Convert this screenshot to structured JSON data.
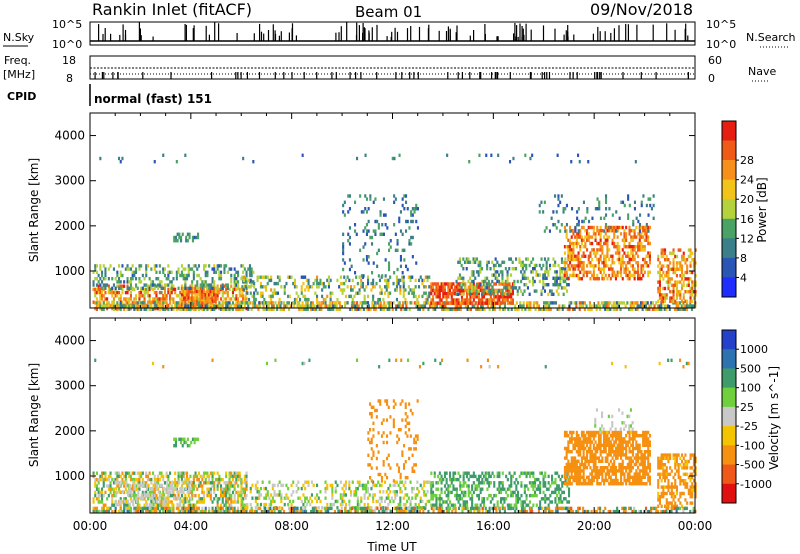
{
  "header": {
    "station": "Rankin Inlet (fitACF)",
    "beam": "Beam 01",
    "date": "09/Nov/2018"
  },
  "strips": {
    "nsky_label": "N.Sky",
    "nsearch_label": "N.Search",
    "nsky_ticks": [
      "10^5",
      "10^0"
    ],
    "nsearch_ticks": [
      "10^5",
      "10^0"
    ],
    "freq_label_top": "Freq.",
    "freq_label_unit": "[MHz]",
    "freq_ticks": [
      "18",
      "8"
    ],
    "nave_label": "Nave",
    "nave_ticks": [
      "60",
      "0"
    ],
    "cpid_label": "CPID",
    "cpid_text": "normal (fast) 151"
  },
  "chart_data": [
    {
      "type": "heatmap",
      "title": "",
      "panel": "power",
      "xlabel": "",
      "ylabel": "Slant Range [km]",
      "xlim": [
        0,
        24
      ],
      "ylim": [
        180,
        4500
      ],
      "x_ticks": [
        "00:00",
        "04:00",
        "08:00",
        "12:00",
        "16:00",
        "20:00",
        "00:00"
      ],
      "y_ticks": [
        1000,
        2000,
        3000,
        4000
      ],
      "colorbar_label": "Power [dB]",
      "colorbar_ticks": [
        "4",
        "8",
        "12",
        "16",
        "20",
        "24",
        "28"
      ],
      "colorbar_range": [
        0,
        32
      ],
      "colorbar_colors": [
        "#1f2dff",
        "#2b55b5",
        "#3b7f8a",
        "#4aa264",
        "#b3d23c",
        "#f2c419",
        "#f6901a",
        "#ef5a17",
        "#e61e12"
      ],
      "scatter_regions": [
        {
          "t": [
            0.1,
            6.2
          ],
          "r": [
            200,
            700
          ],
          "p": [
            14,
            30
          ],
          "d": 0.55
        },
        {
          "t": [
            3.6,
            5.0
          ],
          "r": [
            200,
            650
          ],
          "p": [
            20,
            30
          ],
          "d": 0.85
        },
        {
          "t": [
            0.1,
            24
          ],
          "r": [
            180,
            330
          ],
          "p": [
            6,
            26
          ],
          "d": 0.6
        },
        {
          "t": [
            0.1,
            6.5
          ],
          "r": [
            600,
            1150
          ],
          "p": [
            6,
            18
          ],
          "d": 0.35
        },
        {
          "t": [
            3.3,
            4.3
          ],
          "r": [
            1650,
            1850
          ],
          "p": [
            6,
            14
          ],
          "d": 0.5
        },
        {
          "t": [
            6.0,
            13.5
          ],
          "r": [
            280,
            900
          ],
          "p": [
            6,
            22
          ],
          "d": 0.3
        },
        {
          "t": [
            10.0,
            13.0
          ],
          "r": [
            900,
            2700
          ],
          "p": [
            4,
            14
          ],
          "d": 0.12
        },
        {
          "t": [
            13.5,
            16.8
          ],
          "r": [
            300,
            750
          ],
          "p": [
            22,
            32
          ],
          "d": 0.75
        },
        {
          "t": [
            14.5,
            19.0
          ],
          "r": [
            500,
            1300
          ],
          "p": [
            6,
            18
          ],
          "d": 0.35
        },
        {
          "t": [
            18.8,
            22.2
          ],
          "r": [
            800,
            2000
          ],
          "p": [
            18,
            30
          ],
          "d": 0.55
        },
        {
          "t": [
            17.8,
            22.5
          ],
          "r": [
            1900,
            2700
          ],
          "p": [
            4,
            14
          ],
          "d": 0.12
        },
        {
          "t": [
            22.5,
            24
          ],
          "r": [
            300,
            1500
          ],
          "p": [
            16,
            30
          ],
          "d": 0.5
        },
        {
          "t": [
            0.1,
            24
          ],
          "r": [
            3450,
            3600
          ],
          "p": [
            4,
            12
          ],
          "d": 0.03
        }
      ]
    },
    {
      "type": "heatmap",
      "title": "",
      "panel": "velocity",
      "xlabel": "Time UT",
      "ylabel": "Slant Range [km]",
      "xlim": [
        0,
        24
      ],
      "ylim": [
        180,
        4500
      ],
      "x_ticks": [
        "00:00",
        "04:00",
        "08:00",
        "12:00",
        "16:00",
        "20:00",
        "00:00"
      ],
      "y_ticks": [
        1000,
        2000,
        3000,
        4000
      ],
      "colorbar_label": "Velocity [m s^-1]",
      "colorbar_ticks": [
        "1000",
        "500",
        "100",
        "25",
        "-25",
        "-100",
        "-500",
        "-1000"
      ],
      "colorbar_colors": [
        "#2341c9",
        "#2f72b0",
        "#3e9b6a",
        "#6fcf3c",
        "#c8c8c8",
        "#f5c400",
        "#f59010",
        "#ef5818",
        "#e01010"
      ],
      "scatter_regions": [
        {
          "t": [
            0.1,
            6.2
          ],
          "r": [
            200,
            1100
          ],
          "v": [
            -150,
            150
          ],
          "d": 0.55
        },
        {
          "t": [
            1.0,
            4.0
          ],
          "r": [
            400,
            900
          ],
          "v": [
            -30,
            30
          ],
          "d": 0.4
        },
        {
          "t": [
            3.3,
            4.3
          ],
          "r": [
            1650,
            1850
          ],
          "v": [
            60,
            150
          ],
          "d": 0.5
        },
        {
          "t": [
            6.0,
            13.5
          ],
          "r": [
            250,
            900
          ],
          "v": [
            -80,
            120
          ],
          "d": 0.3
        },
        {
          "t": [
            11.0,
            13.0
          ],
          "r": [
            900,
            2700
          ],
          "v": [
            -400,
            -120
          ],
          "d": 0.14
        },
        {
          "t": [
            13.5,
            19.0
          ],
          "r": [
            250,
            1100
          ],
          "v": [
            50,
            200
          ],
          "d": 0.45
        },
        {
          "t": [
            18.8,
            22.2
          ],
          "r": [
            800,
            2000
          ],
          "v": [
            -450,
            -150
          ],
          "d": 0.7
        },
        {
          "t": [
            20.0,
            21.5
          ],
          "r": [
            2000,
            2500
          ],
          "v": [
            -30,
            30
          ],
          "d": 0.2
        },
        {
          "t": [
            22.5,
            24
          ],
          "r": [
            300,
            1500
          ],
          "v": [
            -300,
            -50
          ],
          "d": 0.5
        },
        {
          "t": [
            0.1,
            24
          ],
          "r": [
            180,
            320
          ],
          "v": [
            -600,
            600
          ],
          "d": 0.5
        },
        {
          "t": [
            0.1,
            24
          ],
          "r": [
            3450,
            3600
          ],
          "v": [
            -300,
            300
          ],
          "d": 0.03
        }
      ]
    }
  ]
}
